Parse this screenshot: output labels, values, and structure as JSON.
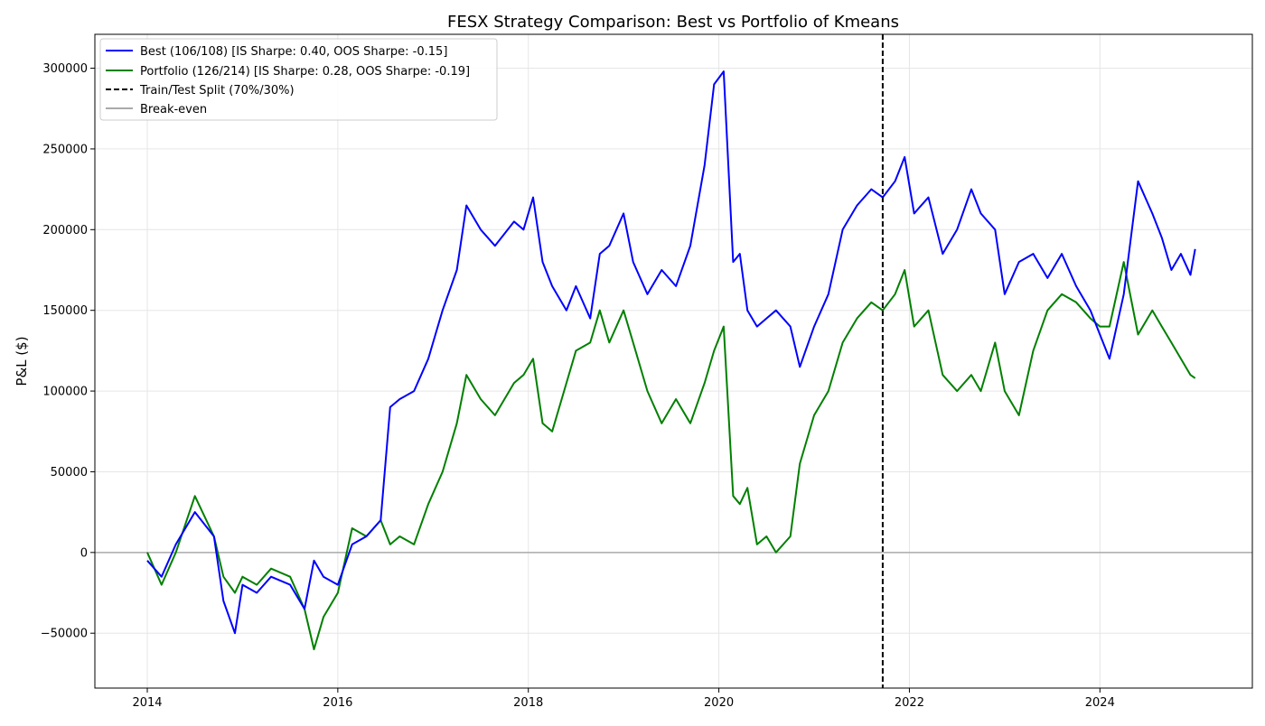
{
  "chart_data": {
    "type": "line",
    "title": "FESX Strategy Comparison: Best vs Portfolio of Kmeans",
    "xlabel": "",
    "ylabel": "P&L ($)",
    "xlim": [
      2013.45,
      2025.6
    ],
    "ylim": [
      -84000,
      321000
    ],
    "x_ticks": [
      2014,
      2016,
      2018,
      2020,
      2022,
      2024
    ],
    "x_tick_labels": [
      "2014",
      "2016",
      "2018",
      "2020",
      "2022",
      "2024"
    ],
    "y_ticks": [
      -50000,
      0,
      50000,
      100000,
      150000,
      200000,
      250000,
      300000
    ],
    "y_tick_labels": [
      "−50000",
      "0",
      "50000",
      "100000",
      "150000",
      "200000",
      "250000",
      "300000"
    ],
    "grid": true,
    "legend_position": "top-left",
    "split_line": {
      "name": "Train/Test Split (70%/30%)",
      "x": 2021.72,
      "color": "#000000"
    },
    "baseline": {
      "name": "Break-even",
      "y": 0,
      "color": "#aaaaaa"
    },
    "series": [
      {
        "name": "Best (106/108) [IS Sharpe: 0.40, OOS Sharpe: -0.15]",
        "color": "#0000ff",
        "x": [
          2014.0,
          2014.15,
          2014.3,
          2014.5,
          2014.7,
          2014.8,
          2014.92,
          2015.0,
          2015.15,
          2015.3,
          2015.5,
          2015.65,
          2015.75,
          2015.85,
          2016.0,
          2016.15,
          2016.3,
          2016.45,
          2016.55,
          2016.65,
          2016.8,
          2016.95,
          2017.1,
          2017.25,
          2017.35,
          2017.5,
          2017.65,
          2017.85,
          2017.95,
          2018.05,
          2018.15,
          2018.25,
          2018.4,
          2018.5,
          2018.65,
          2018.75,
          2018.85,
          2019.0,
          2019.1,
          2019.25,
          2019.4,
          2019.55,
          2019.7,
          2019.85,
          2019.95,
          2020.05,
          2020.15,
          2020.22,
          2020.3,
          2020.4,
          2020.5,
          2020.6,
          2020.75,
          2020.85,
          2021.0,
          2021.15,
          2021.3,
          2021.45,
          2021.6,
          2021.72,
          2021.85,
          2021.95,
          2022.05,
          2022.2,
          2022.35,
          2022.5,
          2022.65,
          2022.75,
          2022.9,
          2023.0,
          2023.15,
          2023.3,
          2023.45,
          2023.6,
          2023.75,
          2023.9,
          2024.0,
          2024.1,
          2024.25,
          2024.4,
          2024.55,
          2024.65,
          2024.75,
          2024.85,
          2024.95,
          2025.0
        ],
        "y": [
          -5000,
          -15000,
          5000,
          25000,
          10000,
          -30000,
          -50000,
          -20000,
          -25000,
          -15000,
          -20000,
          -35000,
          -5000,
          -15000,
          -20000,
          5000,
          10000,
          20000,
          90000,
          95000,
          100000,
          120000,
          150000,
          175000,
          215000,
          200000,
          190000,
          205000,
          200000,
          220000,
          180000,
          165000,
          150000,
          165000,
          145000,
          185000,
          190000,
          210000,
          180000,
          160000,
          175000,
          165000,
          190000,
          240000,
          290000,
          298000,
          180000,
          185000,
          150000,
          140000,
          145000,
          150000,
          140000,
          115000,
          140000,
          160000,
          200000,
          215000,
          225000,
          220000,
          230000,
          245000,
          210000,
          220000,
          185000,
          200000,
          225000,
          210000,
          200000,
          160000,
          180000,
          185000,
          170000,
          185000,
          165000,
          150000,
          135000,
          120000,
          160000,
          230000,
          210000,
          195000,
          175000,
          185000,
          172000,
          188000
        ]
      },
      {
        "name": "Portfolio (126/214) [IS Sharpe: 0.28, OOS Sharpe: -0.19]",
        "color": "#008000",
        "x": [
          2014.0,
          2014.15,
          2014.3,
          2014.5,
          2014.7,
          2014.8,
          2014.92,
          2015.0,
          2015.15,
          2015.3,
          2015.5,
          2015.65,
          2015.75,
          2015.85,
          2016.0,
          2016.15,
          2016.3,
          2016.45,
          2016.55,
          2016.65,
          2016.8,
          2016.95,
          2017.1,
          2017.25,
          2017.35,
          2017.5,
          2017.65,
          2017.85,
          2017.95,
          2018.05,
          2018.15,
          2018.25,
          2018.4,
          2018.5,
          2018.65,
          2018.75,
          2018.85,
          2019.0,
          2019.1,
          2019.25,
          2019.4,
          2019.55,
          2019.7,
          2019.85,
          2019.95,
          2020.05,
          2020.15,
          2020.22,
          2020.3,
          2020.4,
          2020.5,
          2020.6,
          2020.75,
          2020.85,
          2021.0,
          2021.15,
          2021.3,
          2021.45,
          2021.6,
          2021.72,
          2021.85,
          2021.95,
          2022.05,
          2022.2,
          2022.35,
          2022.5,
          2022.65,
          2022.75,
          2022.9,
          2023.0,
          2023.15,
          2023.3,
          2023.45,
          2023.6,
          2023.75,
          2023.9,
          2024.0,
          2024.1,
          2024.25,
          2024.4,
          2024.55,
          2024.65,
          2024.75,
          2024.85,
          2024.95,
          2025.0
        ],
        "y": [
          0,
          -20000,
          0,
          35000,
          10000,
          -15000,
          -25000,
          -15000,
          -20000,
          -10000,
          -15000,
          -35000,
          -60000,
          -40000,
          -25000,
          15000,
          10000,
          20000,
          5000,
          10000,
          5000,
          30000,
          50000,
          80000,
          110000,
          95000,
          85000,
          105000,
          110000,
          120000,
          80000,
          75000,
          105000,
          125000,
          130000,
          150000,
          130000,
          150000,
          130000,
          100000,
          80000,
          95000,
          80000,
          105000,
          125000,
          140000,
          35000,
          30000,
          40000,
          5000,
          10000,
          0,
          10000,
          55000,
          85000,
          100000,
          130000,
          145000,
          155000,
          150000,
          160000,
          175000,
          140000,
          150000,
          110000,
          100000,
          110000,
          100000,
          130000,
          100000,
          85000,
          125000,
          150000,
          160000,
          155000,
          145000,
          140000,
          140000,
          180000,
          135000,
          150000,
          140000,
          130000,
          120000,
          110000,
          108000
        ]
      }
    ]
  }
}
